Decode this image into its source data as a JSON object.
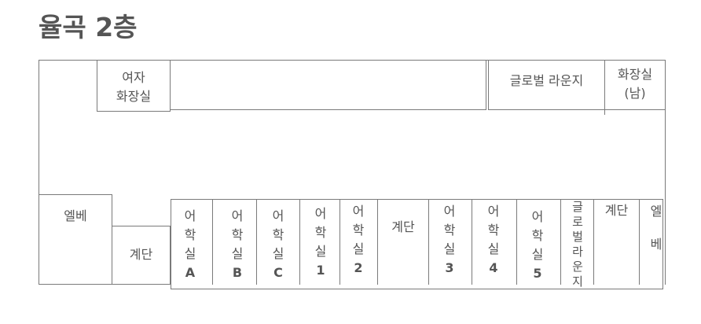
{
  "title": "율곡 2층",
  "rooms": {
    "womens_restroom": [
      "여자",
      "화장실"
    ],
    "global_lounge_top": "글로벌 라운지",
    "mens_restroom": [
      "화장실",
      "(남)"
    ],
    "elevator_left": "엘베",
    "stairs_left": "계단",
    "classrooms": [
      {
        "chars": [
          "어",
          "학",
          "실"
        ],
        "code": "A"
      },
      {
        "chars": [
          "어",
          "학",
          "실"
        ],
        "code": "B"
      },
      {
        "chars": [
          "어",
          "학",
          "실"
        ],
        "code": "C"
      },
      {
        "chars": [
          "어",
          "학",
          "실"
        ],
        "code": "1"
      },
      {
        "chars": [
          "어",
          "학",
          "실"
        ],
        "code": "2"
      },
      {
        "chars": [
          "어",
          "학",
          "실"
        ],
        "code": "3"
      },
      {
        "chars": [
          "어",
          "학",
          "실"
        ],
        "code": "4"
      },
      {
        "chars": [
          "어",
          "학",
          "실"
        ],
        "code": "5"
      }
    ],
    "stairs_middle": "계단",
    "global_lounge_bottom": [
      "글",
      "로",
      "벌",
      "라",
      "운",
      "지"
    ],
    "stairs_right": "계단",
    "elevator_right": [
      "엘",
      "베"
    ]
  }
}
